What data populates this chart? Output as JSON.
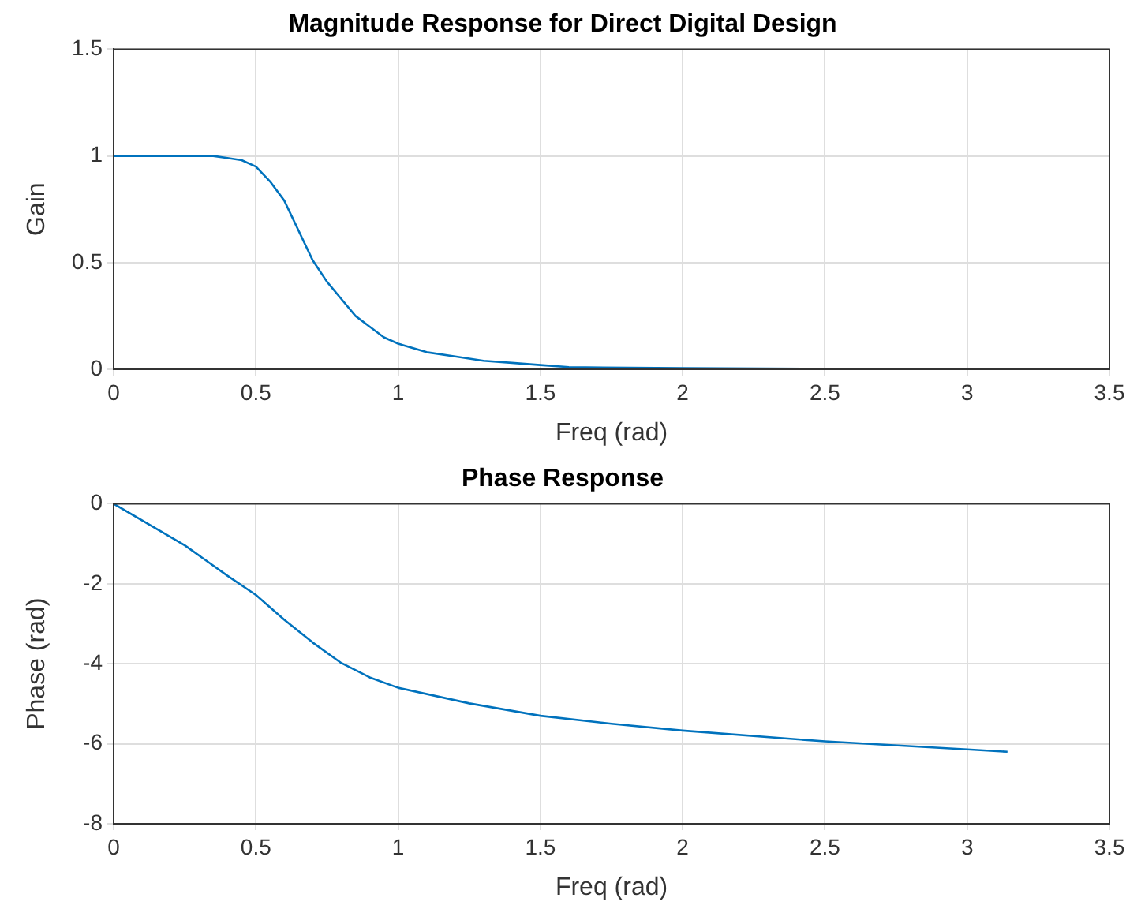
{
  "chart_data": [
    {
      "type": "line",
      "title": "Magnitude Response for Direct Digital Design",
      "xlabel": "Freq (rad)",
      "ylabel": "Gain",
      "xlim": [
        0,
        3.5
      ],
      "xticks": [
        0,
        0.5,
        1,
        1.5,
        2,
        2.5,
        3,
        3.5
      ],
      "ylim": [
        0,
        1.5
      ],
      "yticks": [
        0,
        0.5,
        1,
        1.5
      ],
      "grid": true,
      "series": [
        {
          "color": "#0072bd",
          "x": [
            0,
            0.2,
            0.35,
            0.4,
            0.45,
            0.5,
            0.55,
            0.6,
            0.65,
            0.7,
            0.75,
            0.8,
            0.85,
            0.9,
            0.95,
            1,
            1.1,
            1.2,
            1.3,
            1.4,
            1.5,
            1.6,
            2,
            2.5,
            3.1416
          ],
          "values": [
            1,
            1,
            1,
            0.99,
            0.98,
            0.95,
            0.88,
            0.79,
            0.65,
            0.51,
            0.41,
            0.33,
            0.25,
            0.2,
            0.15,
            0.12,
            0.08,
            0.06,
            0.04,
            0.03,
            0.02,
            0.01,
            0.005,
            0.002,
            0
          ]
        }
      ]
    },
    {
      "type": "line",
      "title": "Phase Response",
      "xlabel": "Freq (rad)",
      "ylabel": "Phase (rad)",
      "xlim": [
        0,
        3.5
      ],
      "xticks": [
        0,
        0.5,
        1,
        1.5,
        2,
        2.5,
        3,
        3.5
      ],
      "ylim": [
        -8,
        0
      ],
      "yticks": [
        -8,
        -6,
        -4,
        -2,
        0
      ],
      "grid": true,
      "series": [
        {
          "color": "#0072bd",
          "x": [
            0,
            0.25,
            0.4,
            0.5,
            0.6,
            0.7,
            0.8,
            0.9,
            1,
            1.25,
            1.5,
            1.75,
            2,
            2.5,
            3,
            3.1416
          ],
          "values": [
            0,
            -1.04,
            -1.8,
            -2.28,
            -2.9,
            -3.47,
            -3.98,
            -4.34,
            -4.6,
            -4.99,
            -5.3,
            -5.5,
            -5.67,
            -5.94,
            -6.14,
            -6.2
          ]
        }
      ]
    }
  ]
}
